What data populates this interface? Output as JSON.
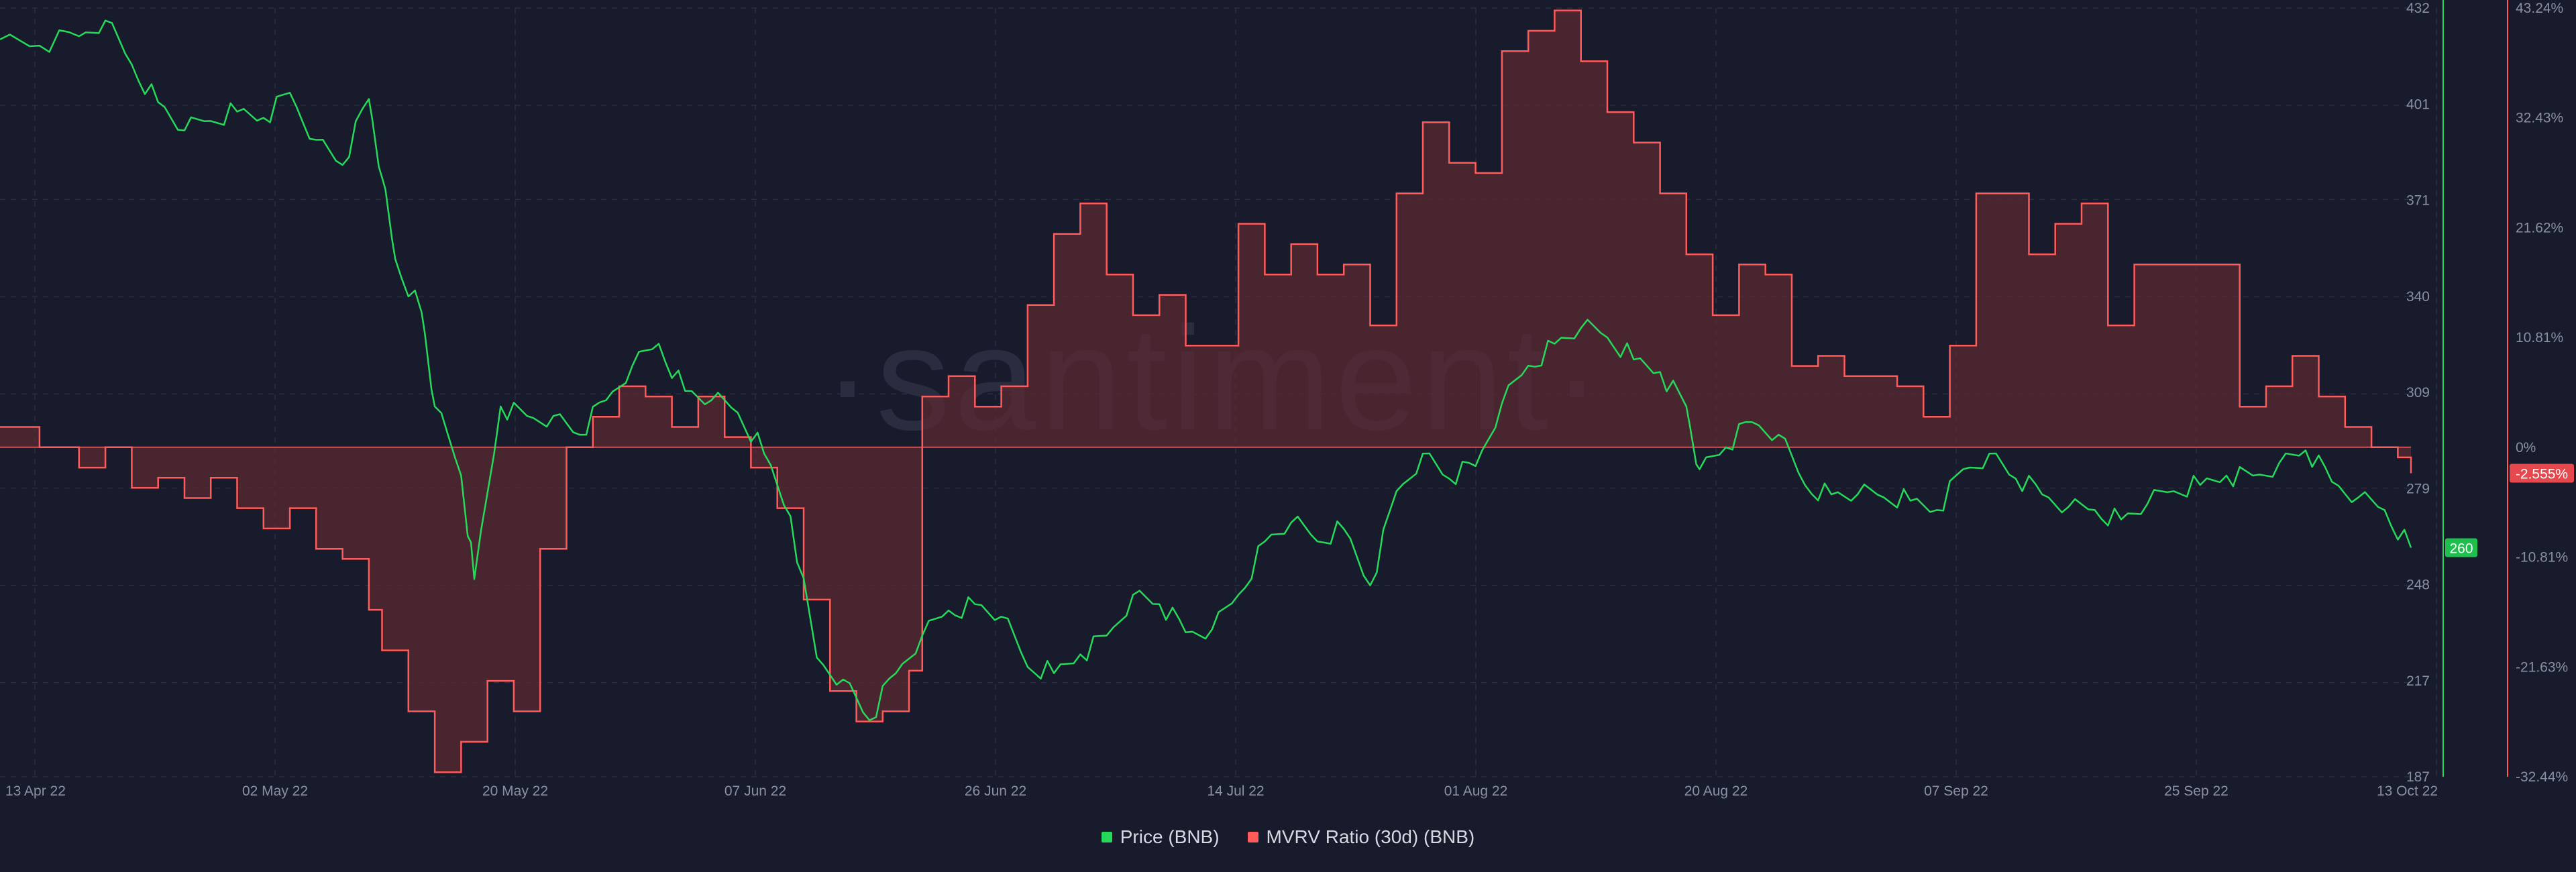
{
  "watermark": "·santiment·",
  "legend": {
    "price": "Price (BNB)",
    "mvrv": "MVRV Ratio (30d) (BNB)"
  },
  "colors": {
    "background": "#181b2b",
    "price": "#26d95a",
    "mvrv": "#ff5b5b",
    "mvrv_fill": "#5a2a33",
    "grid": "#2a2e42"
  },
  "chart_data": {
    "type": "line",
    "x_ticks": [
      "13 Apr 22",
      "02 May 22",
      "20 May 22",
      "07 Jun 22",
      "26 Jun 22",
      "14 Jul 22",
      "01 Aug 22",
      "20 Aug 22",
      "07 Sep 22",
      "25 Sep 22",
      "13 Oct 22"
    ],
    "x_range": [
      "2022-04-13",
      "2022-10-13"
    ],
    "price_axis": {
      "ticks": [
        "432",
        "401",
        "371",
        "340",
        "309",
        "279",
        "248",
        "217",
        "187"
      ],
      "range": [
        187,
        432
      ]
    },
    "mvrv_axis": {
      "ticks": [
        "43.24%",
        "32.43%",
        "21.62%",
        "10.81%",
        "0%",
        "-10.81%",
        "-21.63%",
        "-32.44%"
      ],
      "range": [
        -32.44,
        43.24
      ]
    },
    "current_price_label": "260",
    "current_mvrv_label": "-2.555%",
    "grid": true,
    "legend_position": "bottom-center",
    "series": [
      {
        "name": "Price (BNB)",
        "axis": "left",
        "points": [
          [
            "2022-04-13",
            422
          ],
          [
            "2022-04-16",
            420
          ],
          [
            "2022-04-19",
            423
          ],
          [
            "2022-04-21",
            428
          ],
          [
            "2022-04-23",
            414
          ],
          [
            "2022-04-25",
            402
          ],
          [
            "2022-04-27",
            393
          ],
          [
            "2022-04-29",
            396
          ],
          [
            "2022-05-01",
            399
          ],
          [
            "2022-05-03",
            397
          ],
          [
            "2022-05-05",
            405
          ],
          [
            "2022-05-07",
            390
          ],
          [
            "2022-05-09",
            382
          ],
          [
            "2022-05-11",
            403
          ],
          [
            "2022-05-12",
            378
          ],
          [
            "2022-05-13",
            352
          ],
          [
            "2022-05-15",
            335
          ],
          [
            "2022-05-16",
            305
          ],
          [
            "2022-05-18",
            283
          ],
          [
            "2022-05-19",
            250
          ],
          [
            "2022-05-21",
            305
          ],
          [
            "2022-05-23",
            302
          ],
          [
            "2022-05-25",
            302
          ],
          [
            "2022-05-27",
            296
          ],
          [
            "2022-05-29",
            307
          ],
          [
            "2022-05-31",
            318
          ],
          [
            "2022-06-02",
            325
          ],
          [
            "2022-06-04",
            310
          ],
          [
            "2022-06-06",
            307
          ],
          [
            "2022-06-08",
            303
          ],
          [
            "2022-06-10",
            290
          ],
          [
            "2022-06-12",
            270
          ],
          [
            "2022-06-14",
            225
          ],
          [
            "2022-06-16",
            218
          ],
          [
            "2022-06-18",
            205
          ],
          [
            "2022-06-20",
            220
          ],
          [
            "2022-06-22",
            232
          ],
          [
            "2022-06-24",
            240
          ],
          [
            "2022-06-26",
            242
          ],
          [
            "2022-06-28",
            238
          ],
          [
            "2022-06-30",
            222
          ],
          [
            "2022-07-02",
            220
          ],
          [
            "2022-07-04",
            226
          ],
          [
            "2022-07-06",
            232
          ],
          [
            "2022-07-08",
            245
          ],
          [
            "2022-07-10",
            242
          ],
          [
            "2022-07-12",
            233
          ],
          [
            "2022-07-14",
            234
          ],
          [
            "2022-07-16",
            245
          ],
          [
            "2022-07-18",
            262
          ],
          [
            "2022-07-20",
            268
          ],
          [
            "2022-07-22",
            262
          ],
          [
            "2022-07-24",
            266
          ],
          [
            "2022-07-26",
            248
          ],
          [
            "2022-07-28",
            278
          ],
          [
            "2022-07-30",
            290
          ],
          [
            "2022-08-01",
            282
          ],
          [
            "2022-08-03",
            286
          ],
          [
            "2022-08-05",
            306
          ],
          [
            "2022-08-07",
            318
          ],
          [
            "2022-08-09",
            325
          ],
          [
            "2022-08-11",
            330
          ],
          [
            "2022-08-13",
            327
          ],
          [
            "2022-08-15",
            320
          ],
          [
            "2022-08-17",
            316
          ],
          [
            "2022-08-19",
            305
          ],
          [
            "2022-08-20",
            285
          ],
          [
            "2022-08-22",
            292
          ],
          [
            "2022-08-24",
            300
          ],
          [
            "2022-08-26",
            296
          ],
          [
            "2022-08-28",
            280
          ],
          [
            "2022-08-30",
            277
          ],
          [
            "2022-09-01",
            277
          ],
          [
            "2022-09-03",
            276
          ],
          [
            "2022-09-05",
            275
          ],
          [
            "2022-09-07",
            272
          ],
          [
            "2022-09-09",
            285
          ],
          [
            "2022-09-11",
            290
          ],
          [
            "2022-09-13",
            282
          ],
          [
            "2022-09-15",
            277
          ],
          [
            "2022-09-17",
            273
          ],
          [
            "2022-09-19",
            272
          ],
          [
            "2022-09-21",
            269
          ],
          [
            "2022-09-23",
            274
          ],
          [
            "2022-09-25",
            278
          ],
          [
            "2022-09-27",
            280
          ],
          [
            "2022-09-29",
            283
          ],
          [
            "2022-10-01",
            283
          ],
          [
            "2022-10-03",
            287
          ],
          [
            "2022-10-05",
            291
          ],
          [
            "2022-10-07",
            281
          ],
          [
            "2022-10-09",
            276
          ],
          [
            "2022-10-11",
            272
          ],
          [
            "2022-10-13",
            260
          ]
        ]
      },
      {
        "name": "MVRV Ratio (30d) (BNB)",
        "axis": "right",
        "points": [
          [
            "2022-04-13",
            2
          ],
          [
            "2022-04-16",
            0
          ],
          [
            "2022-04-19",
            -2
          ],
          [
            "2022-04-21",
            0
          ],
          [
            "2022-04-23",
            -4
          ],
          [
            "2022-04-25",
            -3
          ],
          [
            "2022-04-27",
            -5
          ],
          [
            "2022-04-29",
            -3
          ],
          [
            "2022-05-01",
            -6
          ],
          [
            "2022-05-03",
            -8
          ],
          [
            "2022-05-05",
            -6
          ],
          [
            "2022-05-07",
            -10
          ],
          [
            "2022-05-09",
            -11
          ],
          [
            "2022-05-11",
            -16
          ],
          [
            "2022-05-12",
            -20
          ],
          [
            "2022-05-14",
            -26
          ],
          [
            "2022-05-16",
            -32
          ],
          [
            "2022-05-18",
            -29
          ],
          [
            "2022-05-20",
            -23
          ],
          [
            "2022-05-22",
            -26
          ],
          [
            "2022-05-24",
            -10
          ],
          [
            "2022-05-26",
            0
          ],
          [
            "2022-05-28",
            3
          ],
          [
            "2022-05-30",
            6
          ],
          [
            "2022-06-01",
            5
          ],
          [
            "2022-06-03",
            2
          ],
          [
            "2022-06-05",
            5
          ],
          [
            "2022-06-07",
            1
          ],
          [
            "2022-06-09",
            -2
          ],
          [
            "2022-06-11",
            -6
          ],
          [
            "2022-06-13",
            -15
          ],
          [
            "2022-06-15",
            -24
          ],
          [
            "2022-06-17",
            -27
          ],
          [
            "2022-06-19",
            -26
          ],
          [
            "2022-06-21",
            -22
          ],
          [
            "2022-06-22",
            5
          ],
          [
            "2022-06-24",
            7
          ],
          [
            "2022-06-26",
            4
          ],
          [
            "2022-06-28",
            6
          ],
          [
            "2022-06-30",
            14
          ],
          [
            "2022-07-02",
            21
          ],
          [
            "2022-07-04",
            24
          ],
          [
            "2022-07-06",
            17
          ],
          [
            "2022-07-08",
            13
          ],
          [
            "2022-07-10",
            15
          ],
          [
            "2022-07-12",
            10
          ],
          [
            "2022-07-14",
            10
          ],
          [
            "2022-07-16",
            22
          ],
          [
            "2022-07-18",
            17
          ],
          [
            "2022-07-20",
            20
          ],
          [
            "2022-07-22",
            17
          ],
          [
            "2022-07-24",
            18
          ],
          [
            "2022-07-26",
            12
          ],
          [
            "2022-07-28",
            25
          ],
          [
            "2022-07-30",
            32
          ],
          [
            "2022-08-01",
            28
          ],
          [
            "2022-08-03",
            27
          ],
          [
            "2022-08-05",
            39
          ],
          [
            "2022-08-07",
            41
          ],
          [
            "2022-08-09",
            43
          ],
          [
            "2022-08-11",
            38
          ],
          [
            "2022-08-13",
            33
          ],
          [
            "2022-08-15",
            30
          ],
          [
            "2022-08-17",
            25
          ],
          [
            "2022-08-19",
            19
          ],
          [
            "2022-08-21",
            13
          ],
          [
            "2022-08-23",
            18
          ],
          [
            "2022-08-25",
            17
          ],
          [
            "2022-08-27",
            8
          ],
          [
            "2022-08-29",
            9
          ],
          [
            "2022-08-31",
            7
          ],
          [
            "2022-09-02",
            7
          ],
          [
            "2022-09-04",
            6
          ],
          [
            "2022-09-06",
            3
          ],
          [
            "2022-09-08",
            10
          ],
          [
            "2022-09-10",
            25
          ],
          [
            "2022-09-12",
            25
          ],
          [
            "2022-09-14",
            19
          ],
          [
            "2022-09-16",
            22
          ],
          [
            "2022-09-18",
            24
          ],
          [
            "2022-09-20",
            12
          ],
          [
            "2022-09-22",
            18
          ],
          [
            "2022-09-24",
            18
          ],
          [
            "2022-09-26",
            18
          ],
          [
            "2022-09-28",
            18
          ],
          [
            "2022-09-30",
            4
          ],
          [
            "2022-10-02",
            6
          ],
          [
            "2022-10-04",
            9
          ],
          [
            "2022-10-06",
            5
          ],
          [
            "2022-10-08",
            2
          ],
          [
            "2022-10-10",
            0
          ],
          [
            "2022-10-12",
            -1
          ],
          [
            "2022-10-13",
            -2.555
          ]
        ]
      }
    ]
  }
}
